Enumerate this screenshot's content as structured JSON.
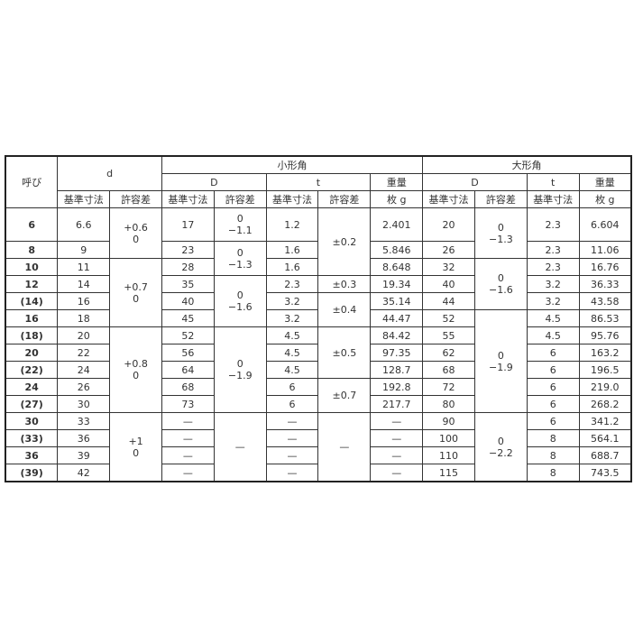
{
  "header": {
    "nominal": "呼び",
    "d": "d",
    "small": "小形角",
    "large": "大形角",
    "D": "D",
    "t": "t",
    "weight": "重量",
    "basic": "基準寸法",
    "tolerance": "許容差",
    "weight_unit": "枚 g"
  },
  "rows": [
    {
      "nominal": "6",
      "d": "6.6",
      "small_D": "17",
      "small_t": "1.2",
      "small_w": "2.401",
      "large_D": "20",
      "large_t": "2.3",
      "large_w": "6.604"
    },
    {
      "nominal": "8",
      "d": "9",
      "small_D": "23",
      "small_t": "1.6",
      "small_w": "5.846",
      "large_D": "26",
      "large_t": "2.3",
      "large_w": "11.06"
    },
    {
      "nominal": "10",
      "d": "11",
      "small_D": "28",
      "small_t": "1.6",
      "small_w": "8.648",
      "large_D": "32",
      "large_t": "2.3",
      "large_w": "16.76"
    },
    {
      "nominal": "12",
      "d": "14",
      "small_D": "35",
      "small_t": "2.3",
      "small_w": "19.34",
      "large_D": "40",
      "large_t": "3.2",
      "large_w": "36.33"
    },
    {
      "nominal": "(14)",
      "d": "16",
      "small_D": "40",
      "small_t": "3.2",
      "small_w": "35.14",
      "large_D": "44",
      "large_t": "3.2",
      "large_w": "43.58"
    },
    {
      "nominal": "16",
      "d": "18",
      "small_D": "45",
      "small_t": "3.2",
      "small_w": "44.47",
      "large_D": "52",
      "large_t": "4.5",
      "large_w": "86.53"
    },
    {
      "nominal": "(18)",
      "d": "20",
      "small_D": "52",
      "small_t": "4.5",
      "small_w": "84.42",
      "large_D": "55",
      "large_t": "4.5",
      "large_w": "95.76"
    },
    {
      "nominal": "20",
      "d": "22",
      "small_D": "56",
      "small_t": "4.5",
      "small_w": "97.35",
      "large_D": "62",
      "large_t": "6",
      "large_w": "163.2"
    },
    {
      "nominal": "(22)",
      "d": "24",
      "small_D": "64",
      "small_t": "4.5",
      "small_w": "128.7",
      "large_D": "68",
      "large_t": "6",
      "large_w": "196.5"
    },
    {
      "nominal": "24",
      "d": "26",
      "small_D": "68",
      "small_t": "6",
      "small_w": "192.8",
      "large_D": "72",
      "large_t": "6",
      "large_w": "219.0"
    },
    {
      "nominal": "(27)",
      "d": "30",
      "small_D": "73",
      "small_t": "6",
      "small_w": "217.7",
      "large_D": "80",
      "large_t": "6",
      "large_w": "268.2"
    },
    {
      "nominal": "30",
      "d": "33",
      "small_D": "—",
      "small_t": "—",
      "small_w": "—",
      "large_D": "90",
      "large_t": "6",
      "large_w": "341.2"
    },
    {
      "nominal": "(33)",
      "d": "36",
      "small_D": "—",
      "small_t": "—",
      "small_w": "—",
      "large_D": "100",
      "large_t": "8",
      "large_w": "564.1"
    },
    {
      "nominal": "36",
      "d": "39",
      "small_D": "—",
      "small_t": "—",
      "small_w": "—",
      "large_D": "110",
      "large_t": "8",
      "large_w": "688.7"
    },
    {
      "nominal": "(39)",
      "d": "42",
      "small_D": "—",
      "small_t": "—",
      "small_w": "—",
      "large_D": "115",
      "large_t": "8",
      "large_w": "743.5"
    }
  ],
  "tolerances": {
    "d": [
      {
        "value": "+0.6\n0",
        "span": 2
      },
      {
        "value": "+0.7\n0",
        "span": 4
      },
      {
        "value": "+0.8\n0",
        "span": 5
      },
      {
        "value": "+1\n0",
        "span": 4
      }
    ],
    "small_D": [
      {
        "value": "0\n−1.1",
        "span": 1
      },
      {
        "value": "0\n−1.3",
        "span": 2
      },
      {
        "value": "0\n−1.6",
        "span": 3
      },
      {
        "value": "0\n−1.9",
        "span": 5
      },
      {
        "value": "—",
        "span": 4
      }
    ],
    "small_t": [
      {
        "value": "±0.2",
        "span": 3
      },
      {
        "value": "±0.3",
        "span": 1
      },
      {
        "value": "±0.4",
        "span": 2
      },
      {
        "value": "±0.5",
        "span": 3
      },
      {
        "value": "±0.7",
        "span": 2
      },
      {
        "value": "—",
        "span": 4
      }
    ],
    "large_D": [
      {
        "value": "0\n−1.3",
        "span": 2
      },
      {
        "value": "0\n−1.6",
        "span": 3
      },
      {
        "value": "0\n−1.9",
        "span": 6
      },
      {
        "value": "0\n−2.2",
        "span": 4
      }
    ]
  }
}
